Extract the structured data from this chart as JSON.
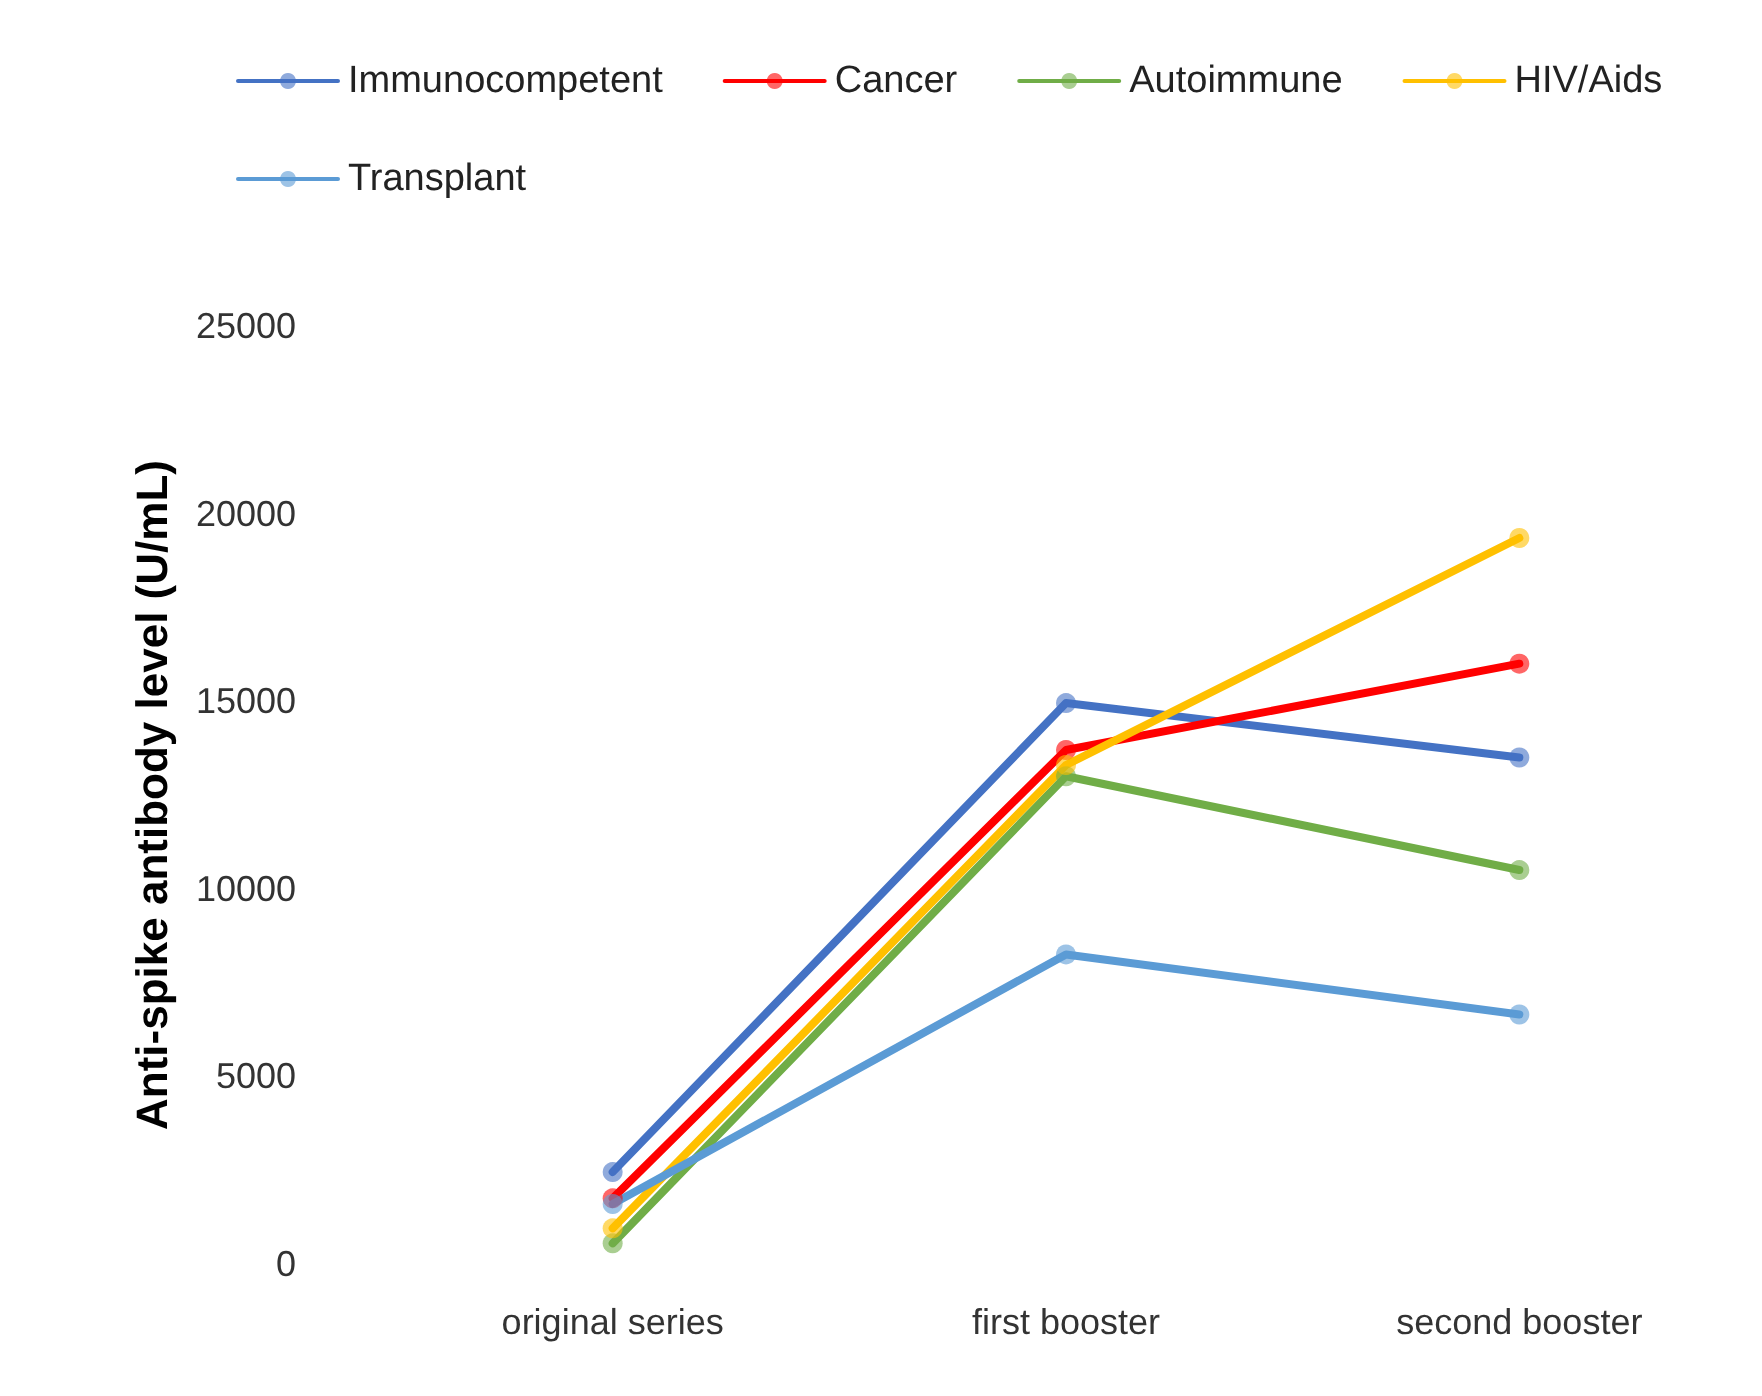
{
  "chart_data": {
    "type": "line",
    "ylabel": "Anti-spike antibody level (U/mL)",
    "categories": [
      "original series",
      "first booster",
      "second booster"
    ],
    "series": [
      {
        "name": "Immunocompetent",
        "color": "#4472c4",
        "values": [
          2450,
          14950,
          13500
        ]
      },
      {
        "name": "Cancer",
        "color": "#ff0000",
        "values": [
          1750,
          13700,
          16000
        ]
      },
      {
        "name": "Autoimmune",
        "color": "#70ad47",
        "values": [
          550,
          13000,
          10500
        ]
      },
      {
        "name": "HIV/Aids",
        "color": "#ffc000",
        "values": [
          950,
          13300,
          19350
        ]
      },
      {
        "name": "Transplant",
        "color": "#5b9bd5",
        "values": [
          1600,
          8250,
          6650
        ]
      }
    ],
    "ylim": [
      0,
      25000
    ],
    "yticks": [
      0,
      5000,
      10000,
      15000,
      20000,
      25000
    ],
    "grid": false,
    "legend": "top",
    "marker": "circle",
    "line_style": "solid"
  }
}
